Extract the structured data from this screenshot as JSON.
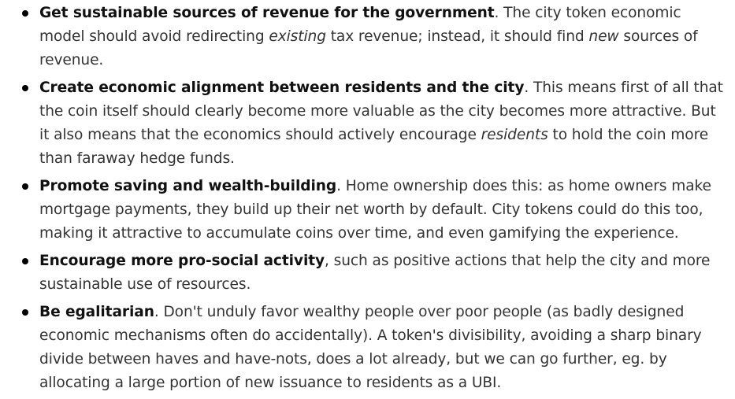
{
  "goals": [
    {
      "title": "Get sustainable sources of revenue for the government",
      "t1": ". The city token economic model should avoid redirecting ",
      "e1": "existing",
      "t2": " tax revenue; instead, it should find ",
      "e2": "new",
      "t3": " sources of revenue."
    },
    {
      "title": "Create economic alignment between residents and the city",
      "t1": ". This means first of all that the coin itself should clearly become more valuable as the city becomes more attractive. But it also means that the economics should actively encourage ",
      "e1": "residents",
      "t2": " to hold the coin more than faraway hedge funds."
    },
    {
      "title": "Promote saving and wealth-building",
      "t1": ". Home ownership does this: as home owners make mortgage payments, they build up their net worth by default. City tokens could do this too, making it attractive to accumulate coins over time, and even gamifying the experience."
    },
    {
      "title": "Encourage more pro-social activity",
      "t1": ", such as positive actions that help the city and more sustainable use of resources."
    },
    {
      "title": "Be egalitarian",
      "t1": ". Don't unduly favor wealthy people over poor people (as badly designed economic mechanisms often do accidentally). A token's divisibility, avoiding a sharp binary divide between haves and have-nots, does a lot already, but we can go further, eg. by allocating a large portion of new issuance to residents as a UBI."
    }
  ]
}
